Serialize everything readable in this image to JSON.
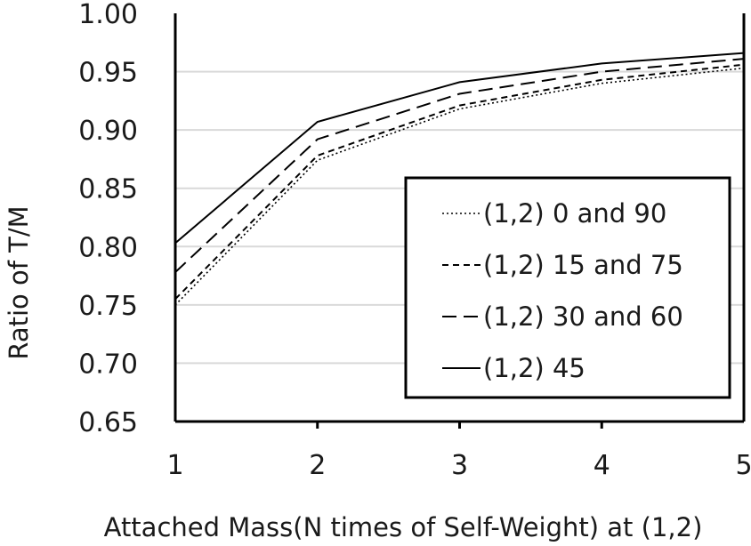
{
  "chart_data": {
    "type": "line",
    "title": "",
    "xlabel": "Attached Mass(N times of Self-Weight) at (1,2)",
    "ylabel": "Ratio of  T/M",
    "x": [
      1,
      2,
      3,
      4,
      5
    ],
    "x_tick_labels": [
      "1",
      "2",
      "3",
      "4",
      "5"
    ],
    "ylim": [
      0.65,
      1.0
    ],
    "y_ticks": [
      0.65,
      0.7,
      0.75,
      0.8,
      0.85,
      0.9,
      0.95,
      1.0
    ],
    "y_tick_labels": [
      "0.65",
      "0.70",
      "0.75",
      "0.80",
      "0.85",
      "0.90",
      "0.95",
      "1.00"
    ],
    "grid": "horizontal",
    "legend_position": "lower-right",
    "series": [
      {
        "name": "(1,2) 0 and 90",
        "style": "dotted",
        "values": [
          0.75,
          0.874,
          0.918,
          0.94,
          0.953
        ]
      },
      {
        "name": "(1,2) 15 and 75",
        "style": "short-dash",
        "values": [
          0.755,
          0.878,
          0.921,
          0.943,
          0.956
        ]
      },
      {
        "name": "(1,2) 30 and 60",
        "style": "long-dash",
        "values": [
          0.778,
          0.892,
          0.931,
          0.95,
          0.961
        ]
      },
      {
        "name": "(1,2) 45",
        "style": "solid",
        "values": [
          0.803,
          0.907,
          0.941,
          0.957,
          0.966
        ]
      }
    ],
    "line_color": "#000000",
    "grid_color": "#d9d9d9"
  }
}
